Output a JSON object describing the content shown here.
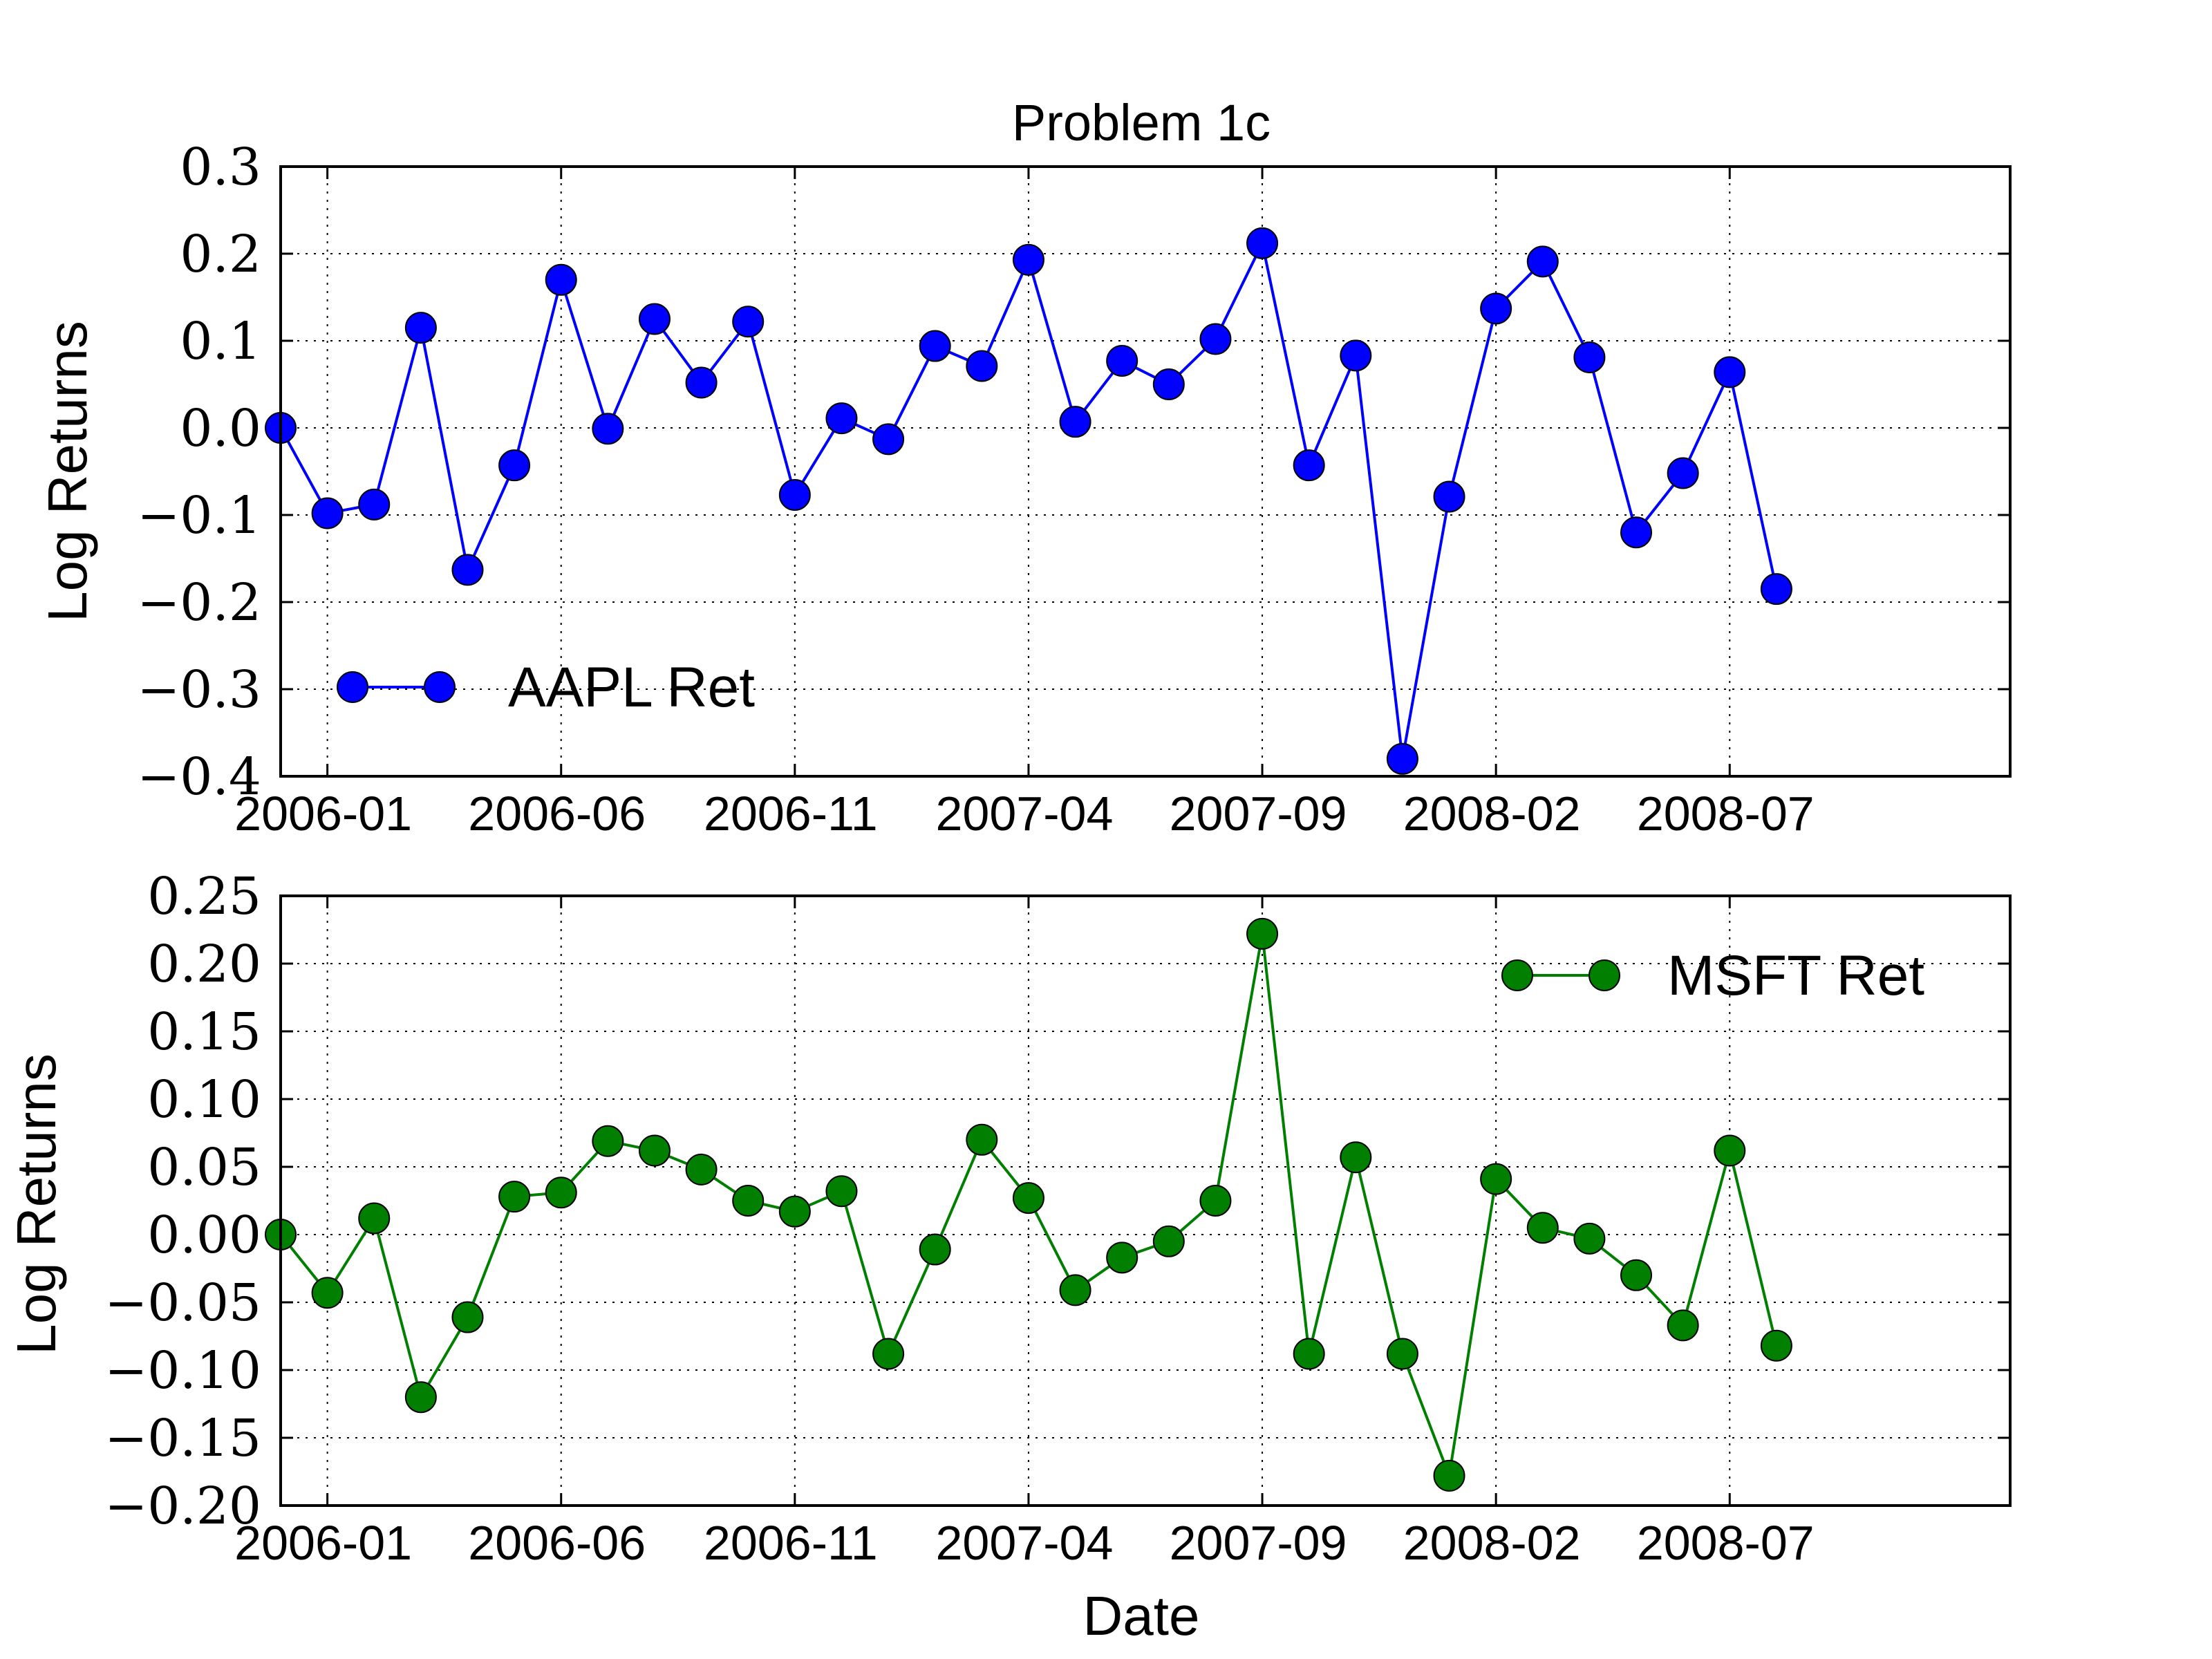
{
  "figure": {
    "title": "Problem 1c",
    "xlabel": "Date"
  },
  "chart_data": [
    {
      "type": "line",
      "title": "Problem 1c",
      "xlabel": "",
      "ylabel": "Log Returns",
      "x_ticks": [
        "2006-01",
        "2006-06",
        "2006-11",
        "2007-04",
        "2007-09",
        "2008-02",
        "2008-07"
      ],
      "y_ticks": [
        "0.3",
        "0.2",
        "0.1",
        "0.0",
        "−0.1",
        "−0.2",
        "−0.3",
        "−0.4"
      ],
      "ylim": [
        -0.4,
        0.3
      ],
      "xlim": [
        "2005-12",
        "2009-01"
      ],
      "grid": true,
      "legend_position": "lower-left",
      "x": [
        "2005-12",
        "2006-01",
        "2006-02",
        "2006-03",
        "2006-04",
        "2006-05",
        "2006-06",
        "2006-07",
        "2006-08",
        "2006-09",
        "2006-10",
        "2006-11",
        "2006-12",
        "2007-01",
        "2007-02",
        "2007-03",
        "2007-04",
        "2007-05",
        "2007-06",
        "2007-07",
        "2007-08",
        "2007-09",
        "2007-10",
        "2007-11",
        "2007-12",
        "2008-01",
        "2008-02",
        "2008-03",
        "2008-04",
        "2008-05",
        "2008-06",
        "2008-07",
        "2008-08"
      ],
      "series": [
        {
          "name": "AAPL Ret",
          "color": "#0000ff",
          "values": [
            0.0,
            -0.098,
            -0.088,
            0.115,
            -0.163,
            -0.043,
            0.17,
            -0.001,
            0.125,
            0.052,
            0.122,
            -0.077,
            0.011,
            -0.013,
            0.094,
            0.071,
            0.193,
            0.007,
            0.077,
            0.05,
            0.102,
            0.212,
            -0.043,
            0.083,
            -0.38,
            -0.079,
            0.137,
            0.191,
            0.081,
            -0.12,
            -0.052,
            0.064,
            -0.185
          ]
        }
      ]
    },
    {
      "type": "line",
      "title": "",
      "xlabel": "Date",
      "ylabel": "Log Returns",
      "x_ticks": [
        "2006-01",
        "2006-06",
        "2006-11",
        "2007-04",
        "2007-09",
        "2008-02",
        "2008-07"
      ],
      "y_ticks": [
        "0.25",
        "0.20",
        "0.15",
        "0.10",
        "0.05",
        "0.00",
        "−0.05",
        "−0.10",
        "−0.15",
        "−0.20"
      ],
      "ylim": [
        -0.2,
        0.25
      ],
      "xlim": [
        "2005-12",
        "2009-01"
      ],
      "grid": true,
      "legend_position": "upper-right",
      "x": [
        "2005-12",
        "2006-01",
        "2006-02",
        "2006-03",
        "2006-04",
        "2006-05",
        "2006-06",
        "2006-07",
        "2006-08",
        "2006-09",
        "2006-10",
        "2006-11",
        "2006-12",
        "2007-01",
        "2007-02",
        "2007-03",
        "2007-04",
        "2007-05",
        "2007-06",
        "2007-07",
        "2007-08",
        "2007-09",
        "2007-10",
        "2007-11",
        "2007-12",
        "2008-01",
        "2008-02",
        "2008-03",
        "2008-04",
        "2008-05",
        "2008-06",
        "2008-07",
        "2008-08"
      ],
      "series": [
        {
          "name": "MSFT Ret",
          "color": "#007f00",
          "values": [
            0.0,
            -0.043,
            0.012,
            -0.12,
            -0.061,
            0.028,
            0.031,
            0.069,
            0.062,
            0.048,
            0.025,
            0.017,
            0.032,
            -0.088,
            -0.011,
            0.07,
            0.027,
            -0.041,
            -0.017,
            -0.005,
            0.025,
            0.222,
            -0.088,
            0.057,
            -0.088,
            -0.178,
            0.041,
            0.005,
            -0.003,
            -0.03,
            -0.067,
            0.062,
            -0.082
          ]
        }
      ]
    }
  ]
}
